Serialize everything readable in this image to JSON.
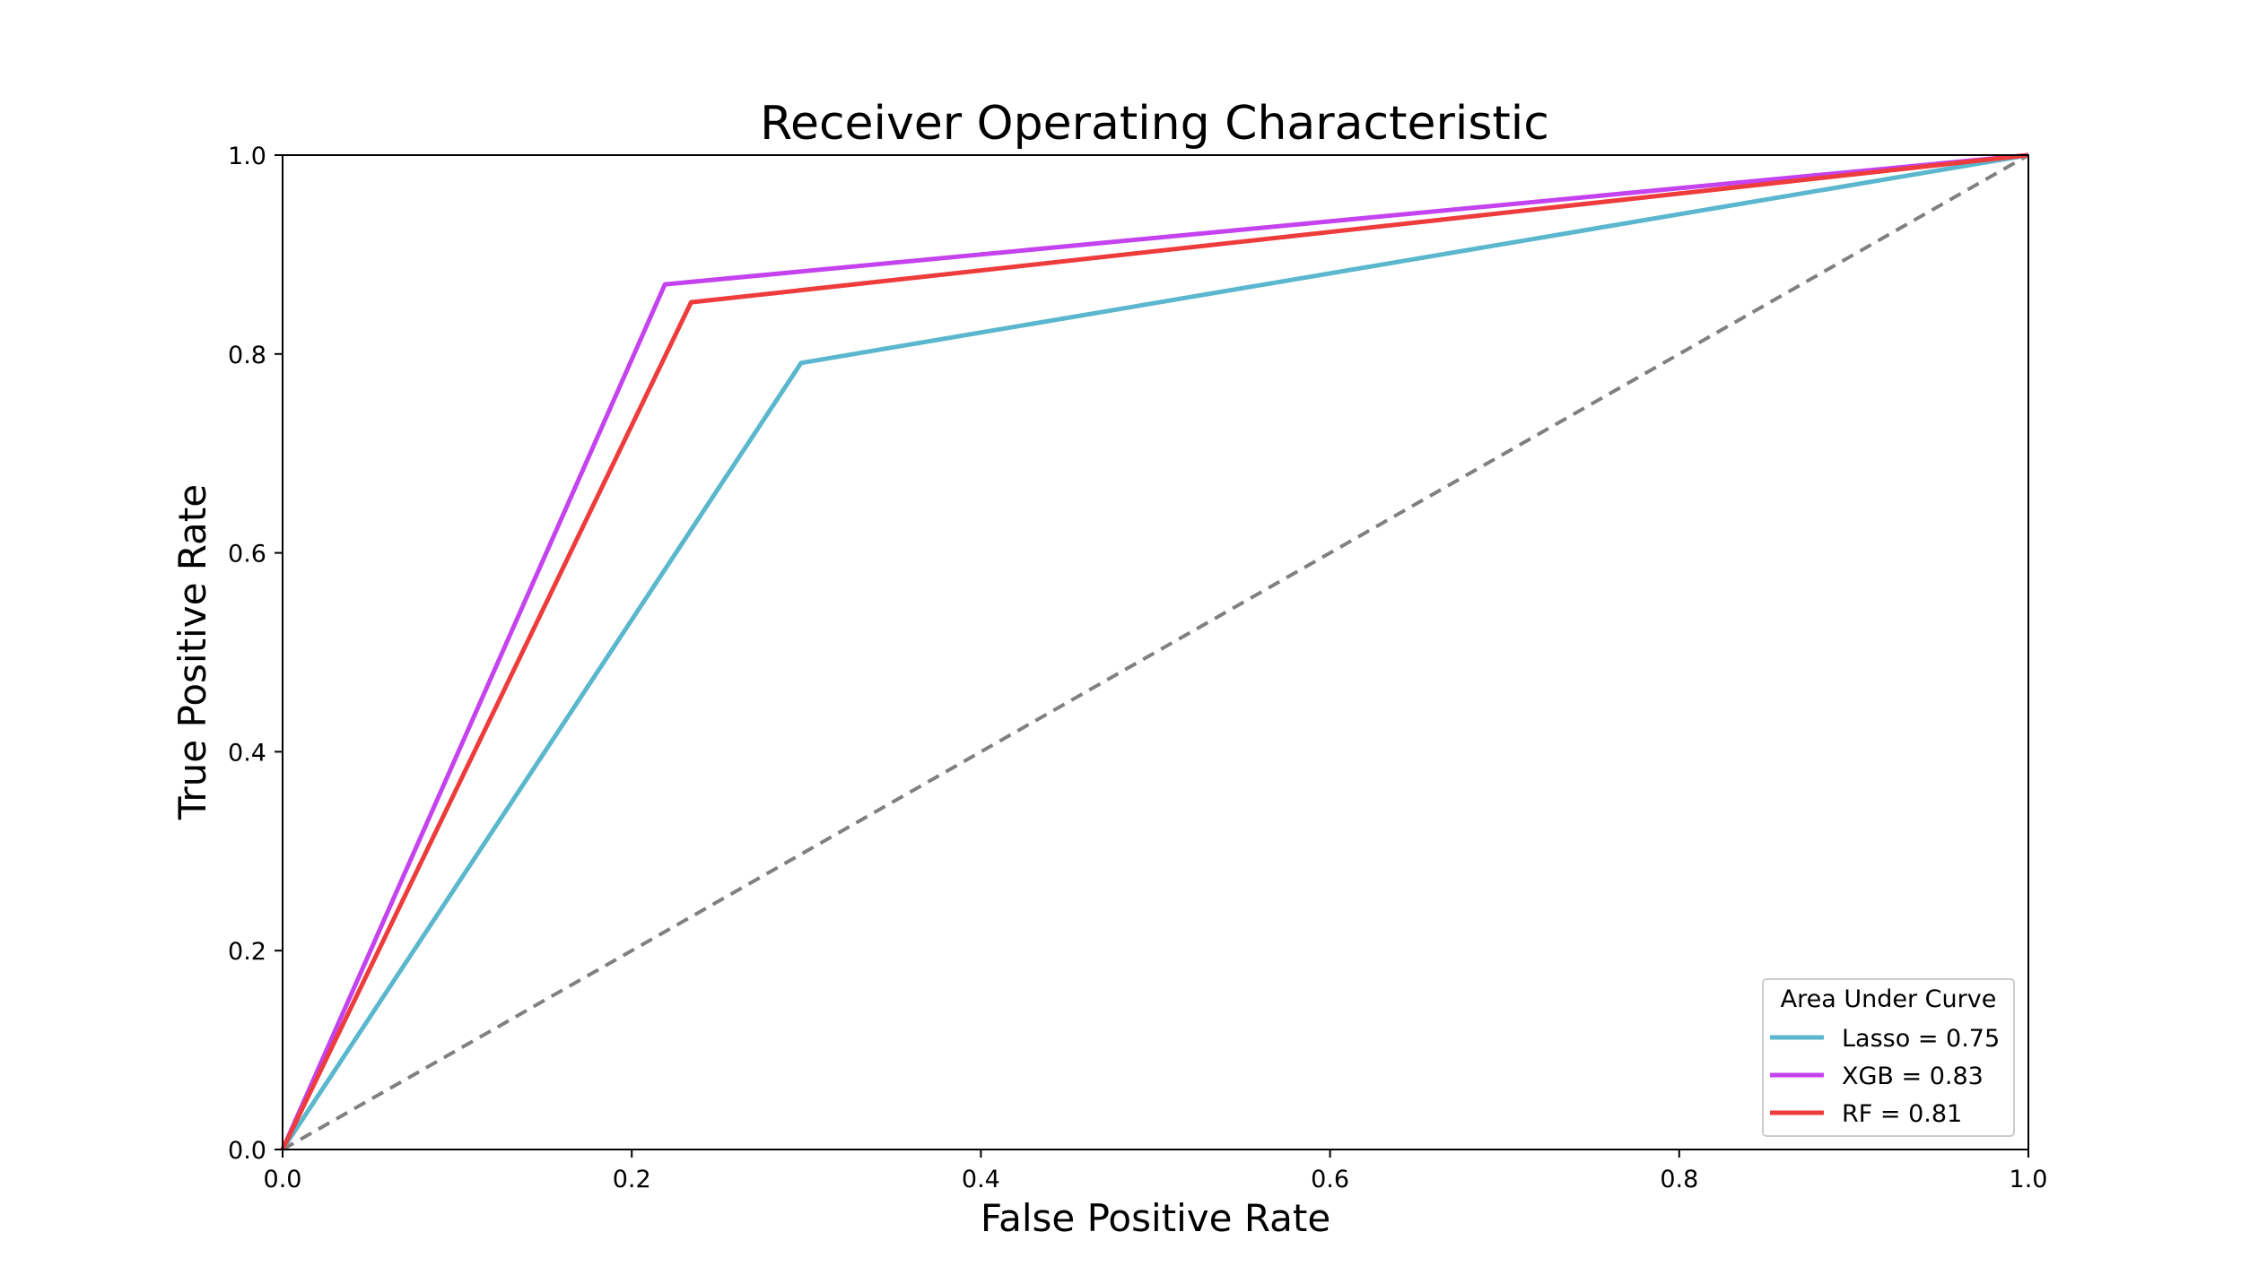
{
  "chart_data": {
    "type": "line",
    "title": "Receiver Operating Characteristic",
    "xlabel": "False Positive Rate",
    "ylabel": "True Positive Rate",
    "xlim": [
      0.0,
      1.0
    ],
    "ylim": [
      0.0,
      1.0
    ],
    "x_ticks": [
      "0.0",
      "0.2",
      "0.4",
      "0.6",
      "0.8",
      "1.0"
    ],
    "y_ticks": [
      "0.0",
      "0.2",
      "0.4",
      "0.6",
      "0.8",
      "1.0"
    ],
    "grid": false,
    "series": [
      {
        "name": "Lasso = 0.75",
        "color": "#5ab7cd",
        "x": [
          0.0,
          0.297,
          1.0
        ],
        "y": [
          0.0,
          0.791,
          1.0
        ]
      },
      {
        "name": "XGB = 0.83",
        "color": "#c542ef",
        "x": [
          0.0,
          0.219,
          1.0
        ],
        "y": [
          0.0,
          0.87,
          1.0
        ]
      },
      {
        "name": "RF = 0.81",
        "color": "#ee3c3c",
        "x": [
          0.0,
          0.234,
          1.0
        ],
        "y": [
          0.0,
          0.852,
          1.0
        ]
      }
    ],
    "reference_line": {
      "style": "dashed",
      "color": "#808080",
      "x": [
        0.0,
        1.0
      ],
      "y": [
        0.0,
        1.0
      ]
    },
    "legend": {
      "title": "Area Under Curve",
      "position": "lower-right"
    }
  }
}
